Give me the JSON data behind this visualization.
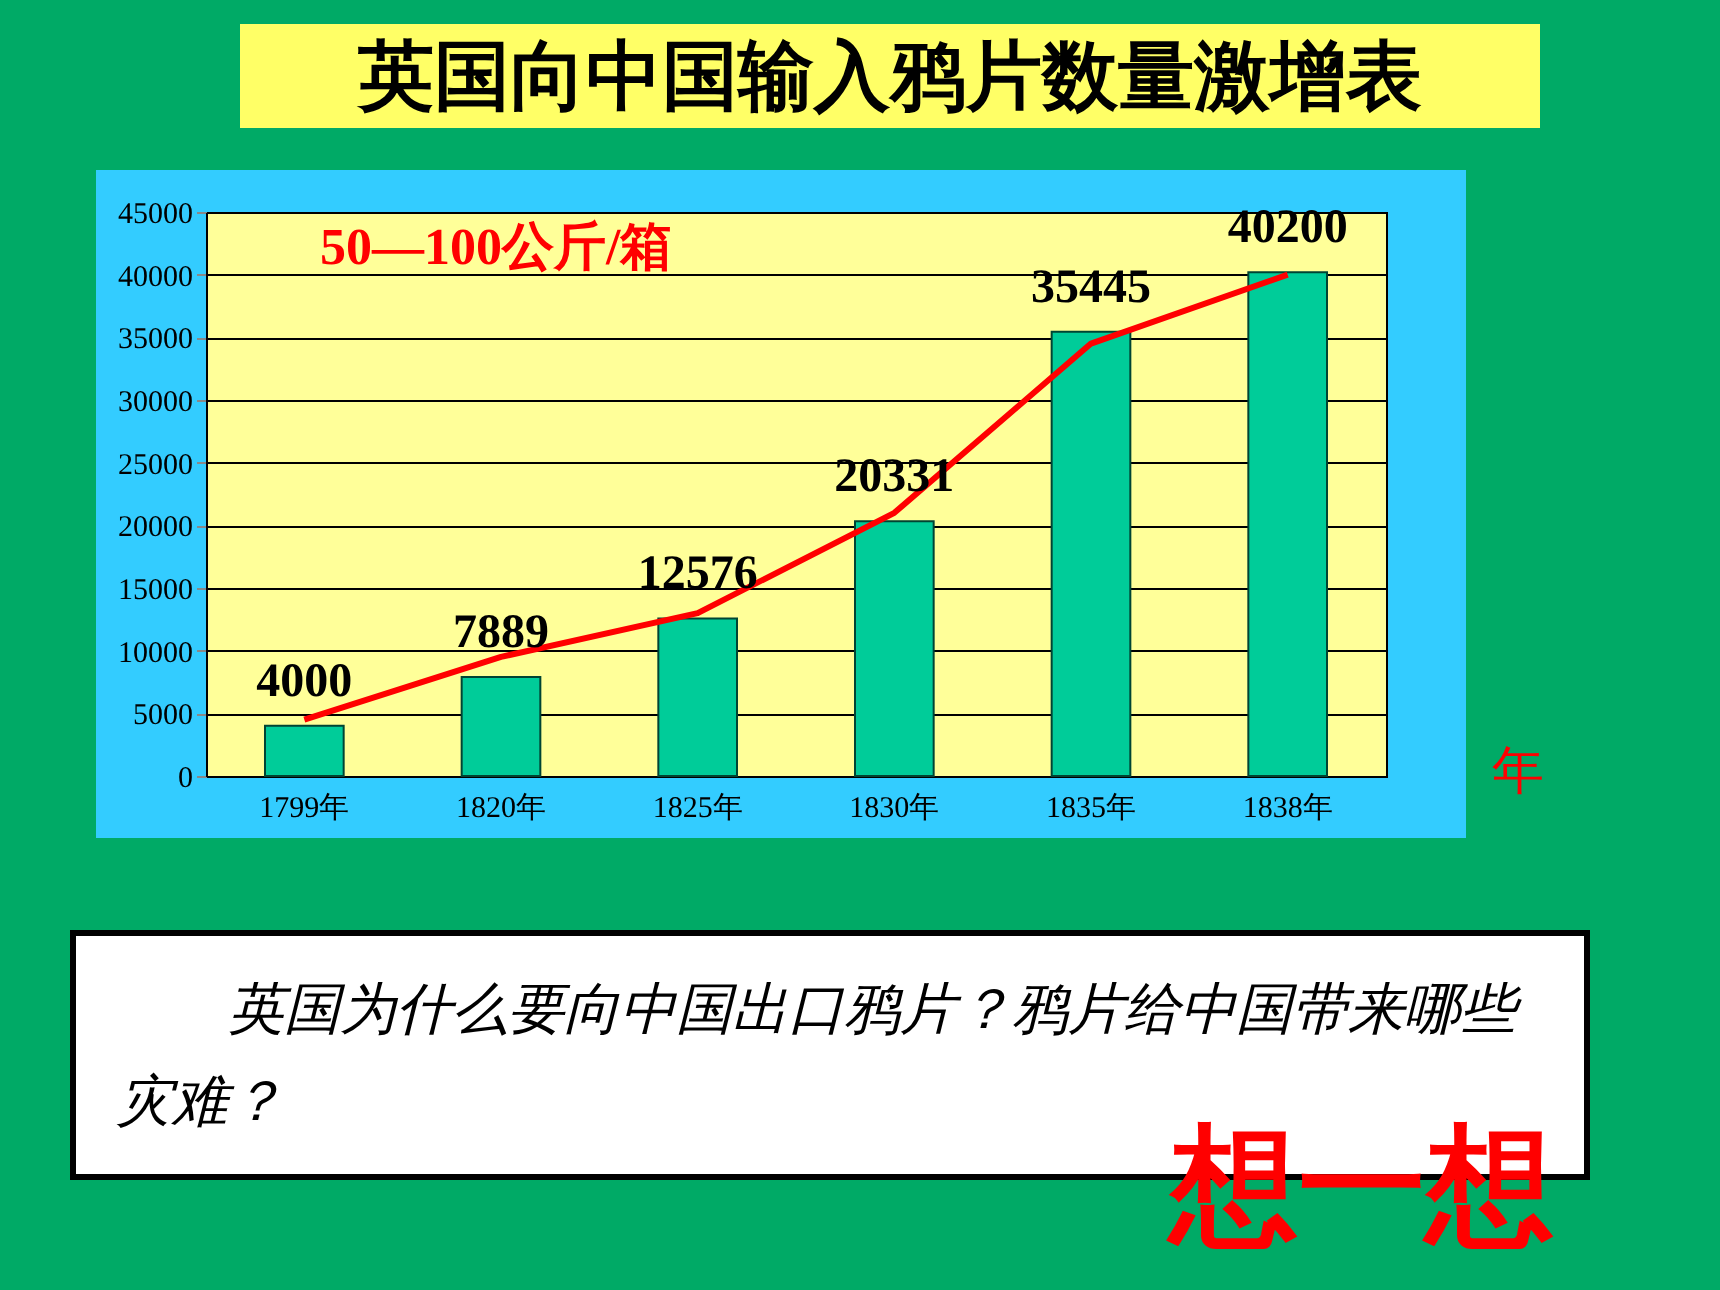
{
  "chart_data": {
    "type": "bar",
    "title": "英国向中国输入鸦片数量激增表",
    "xlabel": "年",
    "categories": [
      "1799年",
      "1820年",
      "1825年",
      "1830年",
      "1835年",
      "1838年"
    ],
    "series": [
      {
        "type": "bar",
        "color": "#00cc99",
        "values": [
          4000,
          7889,
          12576,
          20331,
          35445,
          40200
        ]
      },
      {
        "type": "line",
        "color": "#ff0000",
        "values": [
          4500,
          9500,
          13000,
          21000,
          34500,
          40000
        ]
      }
    ],
    "value_labels": [
      "4000",
      "7889",
      "12576",
      "20331",
      "35445",
      "40200"
    ],
    "ylim": [
      0,
      45000
    ],
    "yticks": [
      0,
      5000,
      10000,
      15000,
      20000,
      25000,
      30000,
      35000,
      40000,
      45000
    ],
    "grid": "y",
    "annotations": [
      "50—100公斤/箱",
      "英国为什么要向中国出口鸦片？鸦片给中国带来哪些灾难？",
      "想一想"
    ]
  }
}
